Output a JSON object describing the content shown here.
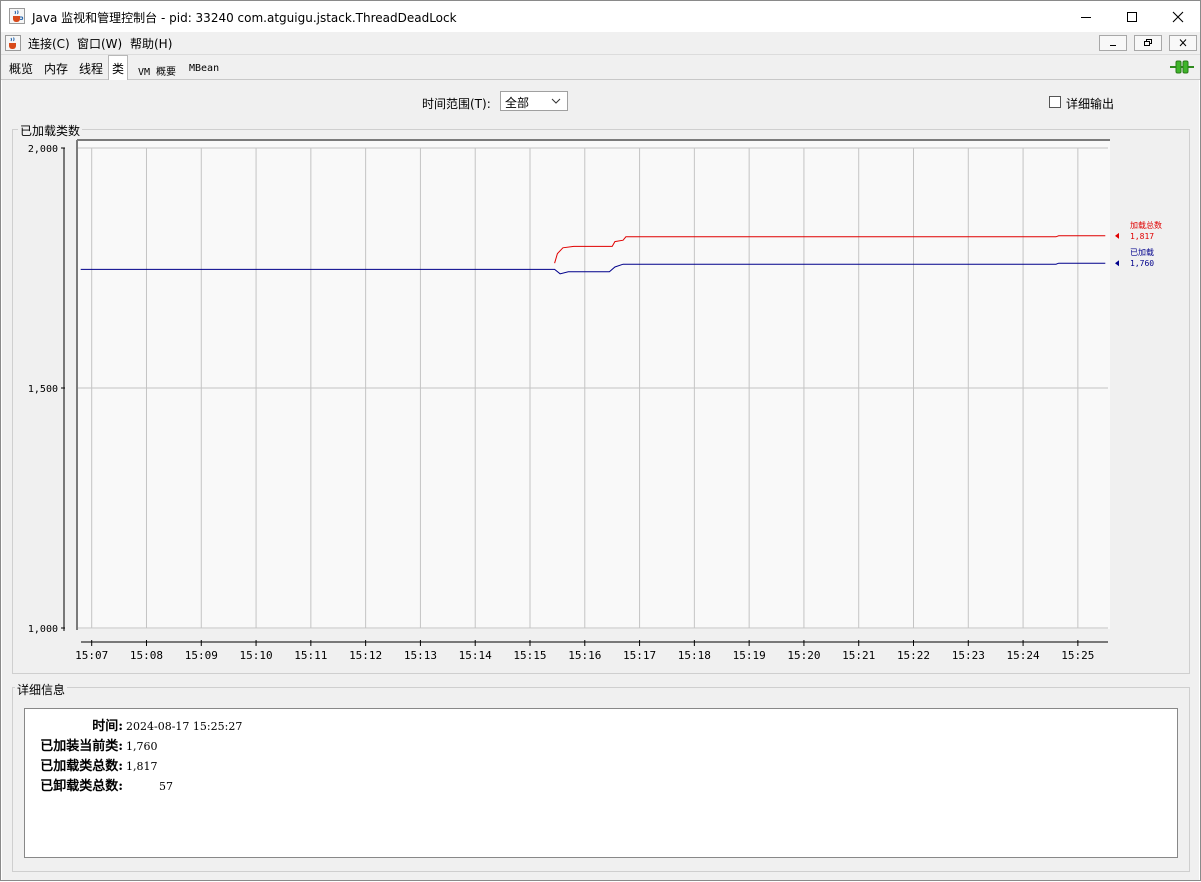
{
  "window": {
    "title": "Java 监视和管理控制台 - pid: 33240 com.atguigu.jstack.ThreadDeadLock"
  },
  "menu": {
    "items": [
      "连接(C)",
      "窗口(W)",
      "帮助(H)"
    ]
  },
  "tabs": [
    {
      "label": "概览",
      "active": false
    },
    {
      "label": "内存",
      "active": false
    },
    {
      "label": "线程",
      "active": false
    },
    {
      "label": "类",
      "active": true
    },
    {
      "label": "VM 概要",
      "active": false
    },
    {
      "label": "MBean",
      "active": false
    }
  ],
  "controls": {
    "range_label": "时间范围(T):",
    "range_value": "全部",
    "detail_output_label": "详细输出",
    "detail_output_checked": false
  },
  "chart_panel": {
    "title": "已加载类数"
  },
  "chart_data": {
    "type": "line",
    "title": "已加载类数",
    "x_ticks": [
      "15:07",
      "15:08",
      "15:09",
      "15:10",
      "15:11",
      "15:12",
      "15:13",
      "15:14",
      "15:15",
      "15:16",
      "15:17",
      "15:18",
      "15:19",
      "15:20",
      "15:21",
      "15:22",
      "15:23",
      "15:24",
      "15:25"
    ],
    "y_ticks": [
      "1,000",
      "1,500",
      "2,000"
    ],
    "ylim": [
      1000,
      2000
    ],
    "x_minutes_range": [
      6.75,
      25.55
    ],
    "grid": true,
    "series": [
      {
        "name": "加载总数",
        "color": "#e00000",
        "current": "1,817",
        "points": [
          [
            15.45,
            1760
          ],
          [
            15.5,
            1780
          ],
          [
            15.6,
            1792
          ],
          [
            15.8,
            1795
          ],
          [
            16.5,
            1795
          ],
          [
            16.55,
            1805
          ],
          [
            16.7,
            1808
          ],
          [
            16.75,
            1815
          ],
          [
            24.6,
            1815
          ],
          [
            24.65,
            1817
          ],
          [
            25.5,
            1817
          ]
        ]
      },
      {
        "name": "已加载",
        "color": "#00008b",
        "current": "1,760",
        "points": [
          [
            6.8,
            1747
          ],
          [
            15.45,
            1747
          ],
          [
            15.55,
            1738
          ],
          [
            15.7,
            1742
          ],
          [
            16.45,
            1742
          ],
          [
            16.55,
            1752
          ],
          [
            16.7,
            1758
          ],
          [
            24.6,
            1758
          ],
          [
            24.65,
            1760
          ],
          [
            25.5,
            1760
          ]
        ]
      }
    ]
  },
  "details_panel": {
    "title": "详细信息",
    "rows": [
      {
        "key": "时间:",
        "value": "2024-08-17 15:25:27"
      },
      {
        "key": "已加装当前类:",
        "value": "1,760"
      },
      {
        "key": "已加载类总数:",
        "value": "1,817"
      },
      {
        "key": "已卸载类总数:",
        "value": "57"
      }
    ]
  }
}
